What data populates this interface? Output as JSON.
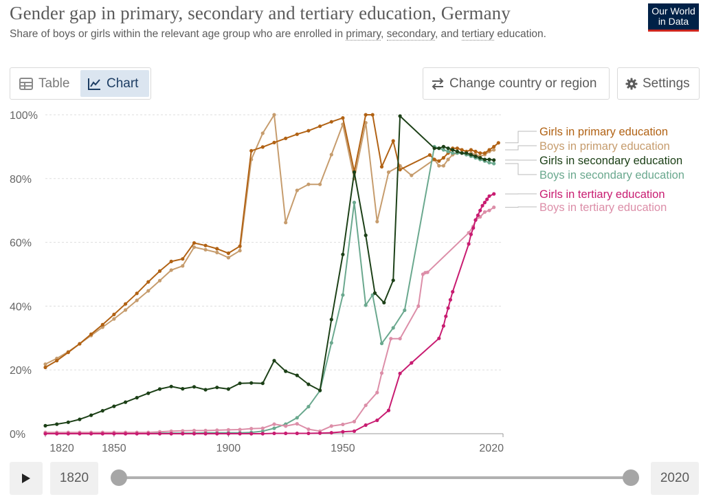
{
  "header": {
    "title": "Gender gap in primary, secondary and tertiary education, Germany",
    "subtitle_pre": "Share of boys or girls within the relevant age group who are enrolled in ",
    "subtitle_link1": "primary",
    "subtitle_sep1": ", ",
    "subtitle_link2": "secondary",
    "subtitle_sep2": ", and ",
    "subtitle_link3": "tertiary",
    "subtitle_post": " education.",
    "logo_line1": "Our World",
    "logo_line2": "in Data"
  },
  "controls": {
    "tab_table": "Table",
    "tab_chart": "Chart",
    "change_country": "Change country or region",
    "settings": "Settings",
    "active_tab": "Chart"
  },
  "timeline": {
    "start_label": "1820",
    "end_label": "2020",
    "start_fraction": 0,
    "end_fraction": 1
  },
  "chart_data": {
    "type": "line",
    "title": "Gender gap in primary, secondary and tertiary education, Germany",
    "xlim": [
      1820,
      2020
    ],
    "ylim": [
      0,
      100
    ],
    "x_ticks": [
      1820,
      1850,
      1900,
      1950,
      2020
    ],
    "y_ticks": [
      0,
      20,
      40,
      60,
      80,
      100
    ],
    "y_tick_labels": [
      "0%",
      "20%",
      "40%",
      "60%",
      "80%",
      "100%"
    ],
    "grid": "horizontal dashed",
    "legend_placement": "right",
    "series": [
      {
        "name": "Boys in primary education",
        "color": "#c69c6d",
        "points": [
          [
            1820,
            21.8
          ],
          [
            1825,
            23.6
          ],
          [
            1830,
            25.7
          ],
          [
            1835,
            28.2
          ],
          [
            1840,
            30.8
          ],
          [
            1845,
            33.4
          ],
          [
            1850,
            36.0
          ],
          [
            1855,
            38.8
          ],
          [
            1860,
            41.8
          ],
          [
            1865,
            44.8
          ],
          [
            1870,
            48.0
          ],
          [
            1875,
            51.3
          ],
          [
            1880,
            52.6
          ],
          [
            1885,
            58.5
          ],
          [
            1890,
            57.7
          ],
          [
            1895,
            56.8
          ],
          [
            1900,
            55.2
          ],
          [
            1905,
            57.4
          ],
          [
            1910,
            86.0
          ],
          [
            1915,
            94.2
          ],
          [
            1920,
            100.0
          ],
          [
            1925,
            66.2
          ],
          [
            1930,
            76.3
          ],
          [
            1935,
            78.2
          ],
          [
            1940,
            78.2
          ],
          [
            1945,
            87.5
          ],
          [
            1950,
            97.0
          ],
          [
            1955,
            80.0
          ],
          [
            1960,
            97.5
          ],
          [
            1965,
            66.5
          ],
          [
            1970,
            82.0
          ],
          [
            1975,
            84.0
          ],
          [
            1980,
            81.0
          ],
          [
            1990,
            86.0
          ],
          [
            1992,
            84.0
          ],
          [
            1994,
            84.0
          ],
          [
            1996,
            86.0
          ],
          [
            1998,
            87.5
          ],
          [
            2000,
            88.0
          ],
          [
            2002,
            88.0
          ],
          [
            2004,
            87.5
          ],
          [
            2006,
            88.0
          ],
          [
            2008,
            87.5
          ],
          [
            2010,
            87.0
          ],
          [
            2012,
            87.5
          ],
          [
            2014,
            88.5
          ],
          [
            2016,
            89.0
          ]
        ]
      },
      {
        "name": "Girls in primary education",
        "color": "#b16214",
        "points": [
          [
            1820,
            20.8
          ],
          [
            1825,
            22.9
          ],
          [
            1830,
            25.5
          ],
          [
            1835,
            28.2
          ],
          [
            1840,
            31.2
          ],
          [
            1845,
            34.2
          ],
          [
            1850,
            37.4
          ],
          [
            1855,
            40.7
          ],
          [
            1860,
            44.0
          ],
          [
            1865,
            47.6
          ],
          [
            1870,
            51.0
          ],
          [
            1875,
            54.0
          ],
          [
            1880,
            54.8
          ],
          [
            1885,
            59.8
          ],
          [
            1890,
            59.0
          ],
          [
            1895,
            58.0
          ],
          [
            1900,
            56.6
          ],
          [
            1905,
            58.8
          ],
          [
            1910,
            88.7
          ],
          [
            1915,
            89.9
          ],
          [
            1920,
            91.3
          ],
          [
            1925,
            92.6
          ],
          [
            1930,
            93.9
          ],
          [
            1935,
            95.0
          ],
          [
            1940,
            96.4
          ],
          [
            1945,
            97.8
          ],
          [
            1950,
            99.0
          ],
          [
            1955,
            82.2
          ],
          [
            1960,
            100.0
          ],
          [
            1963,
            100.0
          ],
          [
            1967,
            83.7
          ],
          [
            1972,
            91.8
          ],
          [
            1975,
            82.8
          ],
          [
            1988,
            87.4
          ],
          [
            1990,
            86.0
          ],
          [
            1992,
            85.5
          ],
          [
            1994,
            86.5
          ],
          [
            1996,
            88.0
          ],
          [
            1998,
            89.5
          ],
          [
            2000,
            89.5
          ],
          [
            2002,
            89.0
          ],
          [
            2004,
            88.5
          ],
          [
            2006,
            89.0
          ],
          [
            2008,
            88.5
          ],
          [
            2010,
            88.0
          ],
          [
            2012,
            88.0
          ],
          [
            2014,
            89.0
          ],
          [
            2016,
            90.0
          ],
          [
            2018,
            91.2
          ]
        ]
      },
      {
        "name": "Boys in secondary education",
        "color": "#6aa88e",
        "points": [
          [
            1820,
            0.2
          ],
          [
            1825,
            0.2
          ],
          [
            1830,
            0.2
          ],
          [
            1835,
            0.2
          ],
          [
            1840,
            0.2
          ],
          [
            1845,
            0.2
          ],
          [
            1850,
            0.2
          ],
          [
            1855,
            0.2
          ],
          [
            1860,
            0.2
          ],
          [
            1865,
            0.2
          ],
          [
            1870,
            0.2
          ],
          [
            1875,
            0.2
          ],
          [
            1880,
            0.2
          ],
          [
            1885,
            0.2
          ],
          [
            1890,
            0.3
          ],
          [
            1895,
            0.3
          ],
          [
            1900,
            0.3
          ],
          [
            1905,
            0.3
          ],
          [
            1910,
            0.4
          ],
          [
            1915,
            0.8
          ],
          [
            1920,
            1.7
          ],
          [
            1925,
            3.0
          ],
          [
            1930,
            5.0
          ],
          [
            1935,
            8.5
          ],
          [
            1940,
            13.5
          ],
          [
            1945,
            28.5
          ],
          [
            1950,
            43.5
          ],
          [
            1955,
            72.5
          ],
          [
            1960,
            40.3
          ],
          [
            1963,
            43.5
          ],
          [
            1967,
            28.3
          ],
          [
            1972,
            33.2
          ],
          [
            1977,
            38.7
          ],
          [
            1990,
            90.0
          ],
          [
            1992,
            89.5
          ],
          [
            1994,
            89.0
          ],
          [
            1996,
            88.5
          ],
          [
            1998,
            88.0
          ],
          [
            2000,
            88.0
          ],
          [
            2002,
            88.0
          ],
          [
            2004,
            87.5
          ],
          [
            2006,
            87.0
          ],
          [
            2008,
            86.5
          ],
          [
            2010,
            86.0
          ],
          [
            2012,
            85.5
          ],
          [
            2014,
            85.0
          ],
          [
            2016,
            84.7
          ]
        ]
      },
      {
        "name": "Girls in secondary education",
        "color": "#1c4017",
        "points": [
          [
            1820,
            2.5
          ],
          [
            1825,
            3.0
          ],
          [
            1830,
            3.6
          ],
          [
            1835,
            4.5
          ],
          [
            1840,
            5.8
          ],
          [
            1845,
            7.2
          ],
          [
            1850,
            8.6
          ],
          [
            1855,
            9.9
          ],
          [
            1860,
            11.3
          ],
          [
            1865,
            12.7
          ],
          [
            1870,
            14.0
          ],
          [
            1875,
            14.8
          ],
          [
            1880,
            14.1
          ],
          [
            1885,
            14.7
          ],
          [
            1890,
            13.8
          ],
          [
            1895,
            14.5
          ],
          [
            1900,
            14.0
          ],
          [
            1905,
            15.8
          ],
          [
            1910,
            15.9
          ],
          [
            1915,
            15.8
          ],
          [
            1920,
            22.9
          ],
          [
            1925,
            19.6
          ],
          [
            1930,
            18.3
          ],
          [
            1935,
            15.5
          ],
          [
            1940,
            13.6
          ],
          [
            1945,
            35.8
          ],
          [
            1950,
            56.2
          ],
          [
            1955,
            82.0
          ],
          [
            1960,
            62.2
          ],
          [
            1964,
            44.1
          ],
          [
            1968,
            41.1
          ],
          [
            1972,
            48.1
          ],
          [
            1975,
            99.6
          ],
          [
            1990,
            89.5
          ],
          [
            1992,
            89.5
          ],
          [
            1994,
            90.0
          ],
          [
            1996,
            89.5
          ],
          [
            1998,
            89.0
          ],
          [
            2000,
            88.5
          ],
          [
            2002,
            88.0
          ],
          [
            2004,
            88.0
          ],
          [
            2006,
            87.5
          ],
          [
            2008,
            87.0
          ],
          [
            2010,
            86.5
          ],
          [
            2012,
            86.0
          ],
          [
            2014,
            86.0
          ],
          [
            2016,
            85.8
          ]
        ]
      },
      {
        "name": "Boys in tertiary education",
        "color": "#dc8ea8",
        "points": [
          [
            1820,
            0.4
          ],
          [
            1825,
            0.4
          ],
          [
            1830,
            0.4
          ],
          [
            1835,
            0.4
          ],
          [
            1840,
            0.4
          ],
          [
            1845,
            0.4
          ],
          [
            1850,
            0.4
          ],
          [
            1855,
            0.4
          ],
          [
            1860,
            0.4
          ],
          [
            1865,
            0.4
          ],
          [
            1870,
            0.6
          ],
          [
            1875,
            0.8
          ],
          [
            1880,
            0.9
          ],
          [
            1885,
            1.0
          ],
          [
            1890,
            1.0
          ],
          [
            1895,
            1.1
          ],
          [
            1900,
            1.2
          ],
          [
            1905,
            1.3
          ],
          [
            1910,
            1.6
          ],
          [
            1915,
            1.7
          ],
          [
            1920,
            3.0
          ],
          [
            1925,
            2.4
          ],
          [
            1930,
            3.1
          ],
          [
            1935,
            1.4
          ],
          [
            1940,
            0.8
          ],
          [
            1945,
            2.4
          ],
          [
            1950,
            2.9
          ],
          [
            1955,
            3.8
          ],
          [
            1960,
            8.9
          ],
          [
            1965,
            12.9
          ],
          [
            1967,
            19.0
          ],
          [
            1971,
            29.8
          ],
          [
            1975,
            29.8
          ],
          [
            1983,
            40.0
          ],
          [
            1985,
            50.0
          ],
          [
            1986,
            50.5
          ],
          [
            1987,
            50.6
          ],
          [
            2005,
            63.0
          ],
          [
            2007,
            65.0
          ],
          [
            2008,
            67.0
          ],
          [
            2010,
            68.0
          ],
          [
            2012,
            69.5
          ],
          [
            2014,
            70.0
          ],
          [
            2016,
            71.0
          ]
        ]
      },
      {
        "name": "Girls in tertiary education",
        "color": "#c81c71",
        "points": [
          [
            1820,
            0.0
          ],
          [
            1825,
            0.0
          ],
          [
            1830,
            0.0
          ],
          [
            1835,
            0.0
          ],
          [
            1840,
            0.0
          ],
          [
            1845,
            0.0
          ],
          [
            1850,
            0.0
          ],
          [
            1855,
            0.0
          ],
          [
            1860,
            0.0
          ],
          [
            1865,
            0.0
          ],
          [
            1870,
            0.0
          ],
          [
            1875,
            0.0
          ],
          [
            1880,
            0.0
          ],
          [
            1885,
            0.0
          ],
          [
            1890,
            0.0
          ],
          [
            1895,
            0.0
          ],
          [
            1900,
            0.0
          ],
          [
            1905,
            0.0
          ],
          [
            1910,
            0.0
          ],
          [
            1915,
            0.0
          ],
          [
            1920,
            0.1
          ],
          [
            1925,
            0.1
          ],
          [
            1930,
            0.1
          ],
          [
            1935,
            0.1
          ],
          [
            1940,
            0.2
          ],
          [
            1945,
            0.3
          ],
          [
            1950,
            0.6
          ],
          [
            1955,
            0.8
          ],
          [
            1960,
            2.7
          ],
          [
            1965,
            4.2
          ],
          [
            1970,
            7.3
          ],
          [
            1975,
            18.9
          ],
          [
            1980,
            22.2
          ],
          [
            1992,
            29.9
          ],
          [
            1994,
            33.8
          ],
          [
            1995,
            36.8
          ],
          [
            1996,
            39.4
          ],
          [
            1997,
            42.0
          ],
          [
            1998,
            44.5
          ],
          [
            2005,
            59.5
          ],
          [
            2006,
            62.5
          ],
          [
            2007,
            64.5
          ],
          [
            2008,
            67.0
          ],
          [
            2009,
            68.5
          ],
          [
            2010,
            70.0
          ],
          [
            2011,
            71.5
          ],
          [
            2012,
            72.5
          ],
          [
            2013,
            73.5
          ],
          [
            2014,
            74.5
          ],
          [
            2016,
            75.2
          ]
        ]
      }
    ],
    "legend": [
      {
        "label": "Girls in primary education",
        "color": "#b16214",
        "y": 91.2
      },
      {
        "label": "Boys in primary education",
        "color": "#c69c6d",
        "y": 89.0
      },
      {
        "label": "Girls in secondary education",
        "color": "#1c4017",
        "y": 85.8
      },
      {
        "label": "Boys in secondary education",
        "color": "#6aa88e",
        "y": 84.7
      },
      {
        "label": "Girls in tertiary education",
        "color": "#c81c71",
        "y": 75.2
      },
      {
        "label": "Boys in tertiary education",
        "color": "#dc8ea8",
        "y": 71.0
      }
    ]
  }
}
